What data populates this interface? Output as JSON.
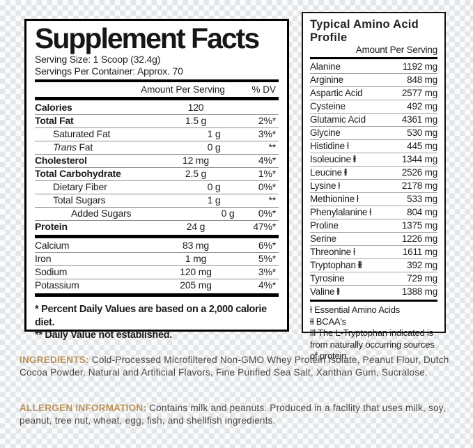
{
  "colors": {
    "accent": "#bb9159",
    "panel_border": "#000000",
    "hairline": "#8d8d8d"
  },
  "supplement_facts": {
    "title": "Supplement Facts",
    "serving_size": "Serving Size: 1 Scoop (32.4g)",
    "servings_per_container": "Servings Per Container: Approx. 70",
    "columns": {
      "amount": "Amount Per Serving",
      "dv": "% DV"
    },
    "rows": [
      {
        "name": "Calories",
        "bold": true,
        "indent": 0,
        "amount": "120",
        "dv": ""
      },
      {
        "name": "Total Fat",
        "bold": true,
        "indent": 0,
        "amount": "1.5 g",
        "dv": "2%*"
      },
      {
        "name": "Saturated Fat",
        "bold": false,
        "indent": 1,
        "amount": "1 g",
        "dv": "3%*"
      },
      {
        "name": " Fat",
        "italic": "Trans",
        "bold": false,
        "indent": 1,
        "amount": "0 g",
        "dv": "**"
      },
      {
        "name": "Cholesterol",
        "bold": true,
        "indent": 0,
        "amount": "12 mg",
        "dv": "4%*"
      },
      {
        "name": "Total Carbohydrate",
        "bold": true,
        "indent": 0,
        "amount": "2.5 g",
        "dv": "1%*"
      },
      {
        "name": "Dietary Fiber",
        "bold": false,
        "indent": 1,
        "amount": "0 g",
        "dv": "0%*"
      },
      {
        "name": "Total Sugars",
        "bold": false,
        "indent": 1,
        "amount": "1 g",
        "dv": "**"
      },
      {
        "name": "Added Sugars",
        "bold": false,
        "indent": 2,
        "amount": "0 g",
        "dv": "0%*"
      },
      {
        "name": "Protein",
        "bold": true,
        "indent": 0,
        "amount": "24 g",
        "dv": "47%*"
      }
    ],
    "mineral_rows": [
      {
        "name": "Calcium",
        "bold": false,
        "indent": 0,
        "amount": "83 mg",
        "dv": "6%*"
      },
      {
        "name": "Iron",
        "bold": false,
        "indent": 0,
        "amount": "1 mg",
        "dv": "5%*"
      },
      {
        "name": "Sodium",
        "bold": false,
        "indent": 0,
        "amount": "120 mg",
        "dv": "3%*"
      },
      {
        "name": "Potassium",
        "bold": false,
        "indent": 0,
        "amount": "205 mg",
        "dv": "4%*"
      }
    ],
    "footnotes": [
      "* Percent Daily Values are based on a 2,000 calorie diet.",
      "** Daily Value not established."
    ]
  },
  "amino_profile": {
    "title": "Typical Amino Acid Profile",
    "subtitle": "Amount Per Serving",
    "rows": [
      {
        "name": "Alanine",
        "marker": "",
        "amount": "1192 mg"
      },
      {
        "name": "Arginine",
        "marker": "",
        "amount": "848 mg"
      },
      {
        "name": "Aspartic Acid",
        "marker": "",
        "amount": "2577 mg"
      },
      {
        "name": "Cysteine",
        "marker": "",
        "amount": "492 mg"
      },
      {
        "name": "Glutamic Acid",
        "marker": "",
        "amount": "4361 mg"
      },
      {
        "name": "Glycine",
        "marker": "",
        "amount": "530 mg"
      },
      {
        "name": "Histidine",
        "marker": "ƚ",
        "amount": "445 mg"
      },
      {
        "name": "Isoleucine",
        "marker": "ƚƚ",
        "amount": "1344 mg"
      },
      {
        "name": "Leucine",
        "marker": "ƚƚ",
        "amount": "2526 mg"
      },
      {
        "name": "Lysine",
        "marker": "ƚ",
        "amount": "2178 mg"
      },
      {
        "name": "Methionine",
        "marker": "ƚ",
        "amount": "533 mg"
      },
      {
        "name": "Phenylalanine",
        "marker": "ƚ",
        "amount": "804 mg"
      },
      {
        "name": "Proline",
        "marker": "",
        "amount": "1375 mg"
      },
      {
        "name": "Serine",
        "marker": "",
        "amount": "1226 mg"
      },
      {
        "name": "Threonine",
        "marker": "ƚ",
        "amount": "1611 mg"
      },
      {
        "name": "Tryptophan",
        "marker": "ƚƚƚ",
        "amount": "392 mg"
      },
      {
        "name": "Tyrosine",
        "marker": "",
        "amount": "729 mg"
      },
      {
        "name": "Valine",
        "marker": "ƚƚ",
        "amount": "1388 mg"
      }
    ],
    "footnotes": [
      "ƚ Essential Amino Acids",
      "ƚƚ BCAA's",
      "ƚƚƚ The L-Tryptophan indicated is from naturally occurring sources of protein."
    ]
  },
  "ingredients": {
    "label": "INGREDIENTS:",
    "text": "Cold-Processed Microfiltered Non-GMO Whey Protein Isolate, Peanut Flour, Dutch Cocoa Powder, Natural and Artificial Flavors, Fine Purified Sea Salt, Xanthan Gum, Sucralose."
  },
  "allergen": {
    "label": "ALLERGEN INFORMATION:",
    "text": "Contains milk and peanuts. Produced in a facility that uses milk, soy, peanut, tree nut, wheat, egg, fish, and shellfish ingredients."
  }
}
